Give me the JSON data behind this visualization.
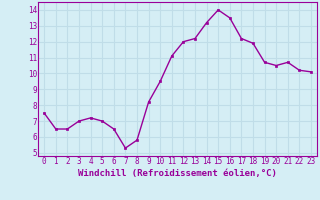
{
  "x": [
    0,
    1,
    2,
    3,
    4,
    5,
    6,
    7,
    8,
    9,
    10,
    11,
    12,
    13,
    14,
    15,
    16,
    17,
    18,
    19,
    20,
    21,
    22,
    23
  ],
  "y": [
    7.5,
    6.5,
    6.5,
    7.0,
    7.2,
    7.0,
    6.5,
    5.3,
    5.8,
    8.2,
    9.5,
    11.1,
    12.0,
    12.2,
    13.2,
    14.0,
    13.5,
    12.2,
    11.9,
    10.7,
    10.5,
    10.7,
    10.2,
    10.1
  ],
  "line_color": "#990099",
  "marker": "s",
  "marker_size": 1.8,
  "linewidth": 1.0,
  "xlabel": "Windchill (Refroidissement éolien,°C)",
  "xlabel_fontsize": 6.5,
  "ylabel_ticks": [
    5,
    6,
    7,
    8,
    9,
    10,
    11,
    12,
    13,
    14
  ],
  "xlim": [
    -0.5,
    23.5
  ],
  "ylim": [
    4.8,
    14.5
  ],
  "xtick_labels": [
    "0",
    "1",
    "2",
    "3",
    "4",
    "5",
    "6",
    "7",
    "8",
    "9",
    "10",
    "11",
    "12",
    "13",
    "14",
    "15",
    "16",
    "17",
    "18",
    "19",
    "20",
    "21",
    "22",
    "23"
  ],
  "background_color": "#d5eef5",
  "grid_color": "#c0dde8",
  "tick_color": "#990099",
  "label_color": "#990099",
  "tick_fontsize": 5.5,
  "spine_color": "#990099"
}
